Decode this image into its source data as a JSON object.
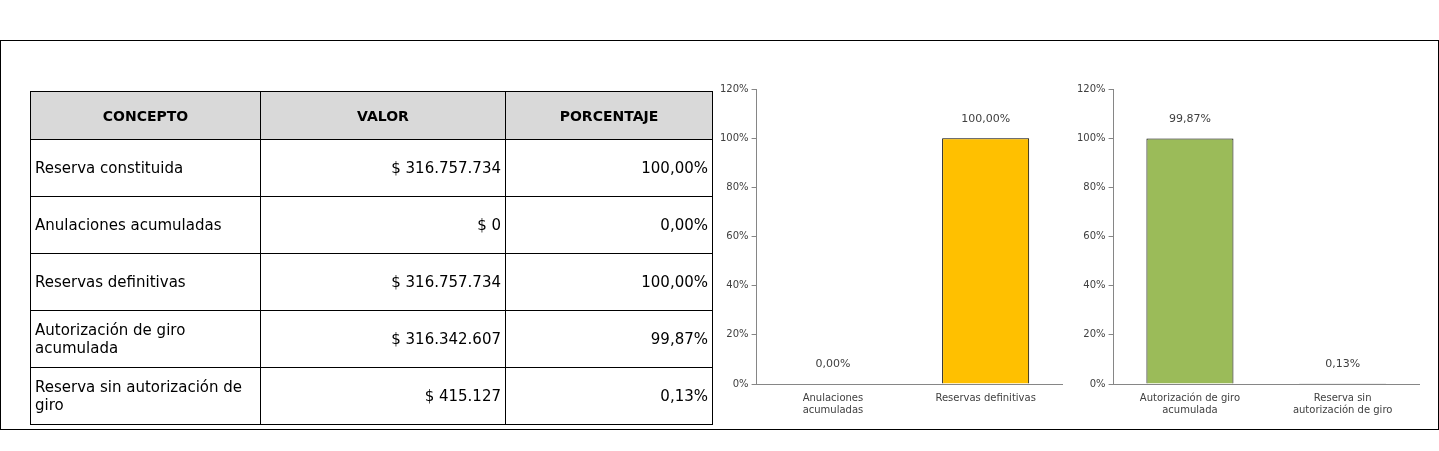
{
  "chart_data": [
    {
      "type": "other",
      "annotations": [
        "CONCEPTO",
        "VALOR",
        "PORCENTAJE",
        "Reserva constituida",
        "$ 316.757.734",
        "100,00%",
        "Anulaciones acumuladas",
        "$ 0",
        "0,00%",
        "Reservas definitivas",
        "$ 316.757.734",
        "100,00%",
        "Autorización de giro acumulada",
        "$ 316.342.607",
        "99,87%",
        "Reserva sin autorización de giro",
        "$ 415.127",
        "0,13%"
      ]
    },
    {
      "type": "bar",
      "categories": [
        "Anulaciones acumuladas",
        "Reservas definitivas"
      ],
      "values": [
        0,
        100
      ],
      "colors": [
        "#ffc000",
        "#ffc000"
      ],
      "value_labels": [
        "0,00%",
        "100,00%"
      ],
      "ylim": [
        0,
        120
      ],
      "yticks": [
        {
          "value": 0,
          "label": "0%"
        },
        {
          "value": 20,
          "label": "20%"
        },
        {
          "value": 40,
          "label": "40%"
        },
        {
          "value": 60,
          "label": "60%"
        },
        {
          "value": 80,
          "label": "80%"
        },
        {
          "value": 100,
          "label": "100%"
        },
        {
          "value": 120,
          "label": "120%"
        }
      ],
      "legend": false,
      "grid": false
    },
    {
      "type": "bar",
      "categories": [
        "Autorización de giro acumulada",
        "Reserva sin autorización de giro"
      ],
      "values": [
        99.87,
        0.13
      ],
      "colors": [
        "#9bbb59",
        "#9bbb59"
      ],
      "value_labels": [
        "99,87%",
        "0,13%"
      ],
      "ylim": [
        0,
        120
      ],
      "yticks": [
        {
          "value": 0,
          "label": "0%"
        },
        {
          "value": 20,
          "label": "20%"
        },
        {
          "value": 40,
          "label": "40%"
        },
        {
          "value": 60,
          "label": "60%"
        },
        {
          "value": 80,
          "label": "80%"
        },
        {
          "value": 100,
          "label": "100%"
        },
        {
          "value": 120,
          "label": "120%"
        }
      ],
      "legend": false,
      "grid": false
    }
  ]
}
